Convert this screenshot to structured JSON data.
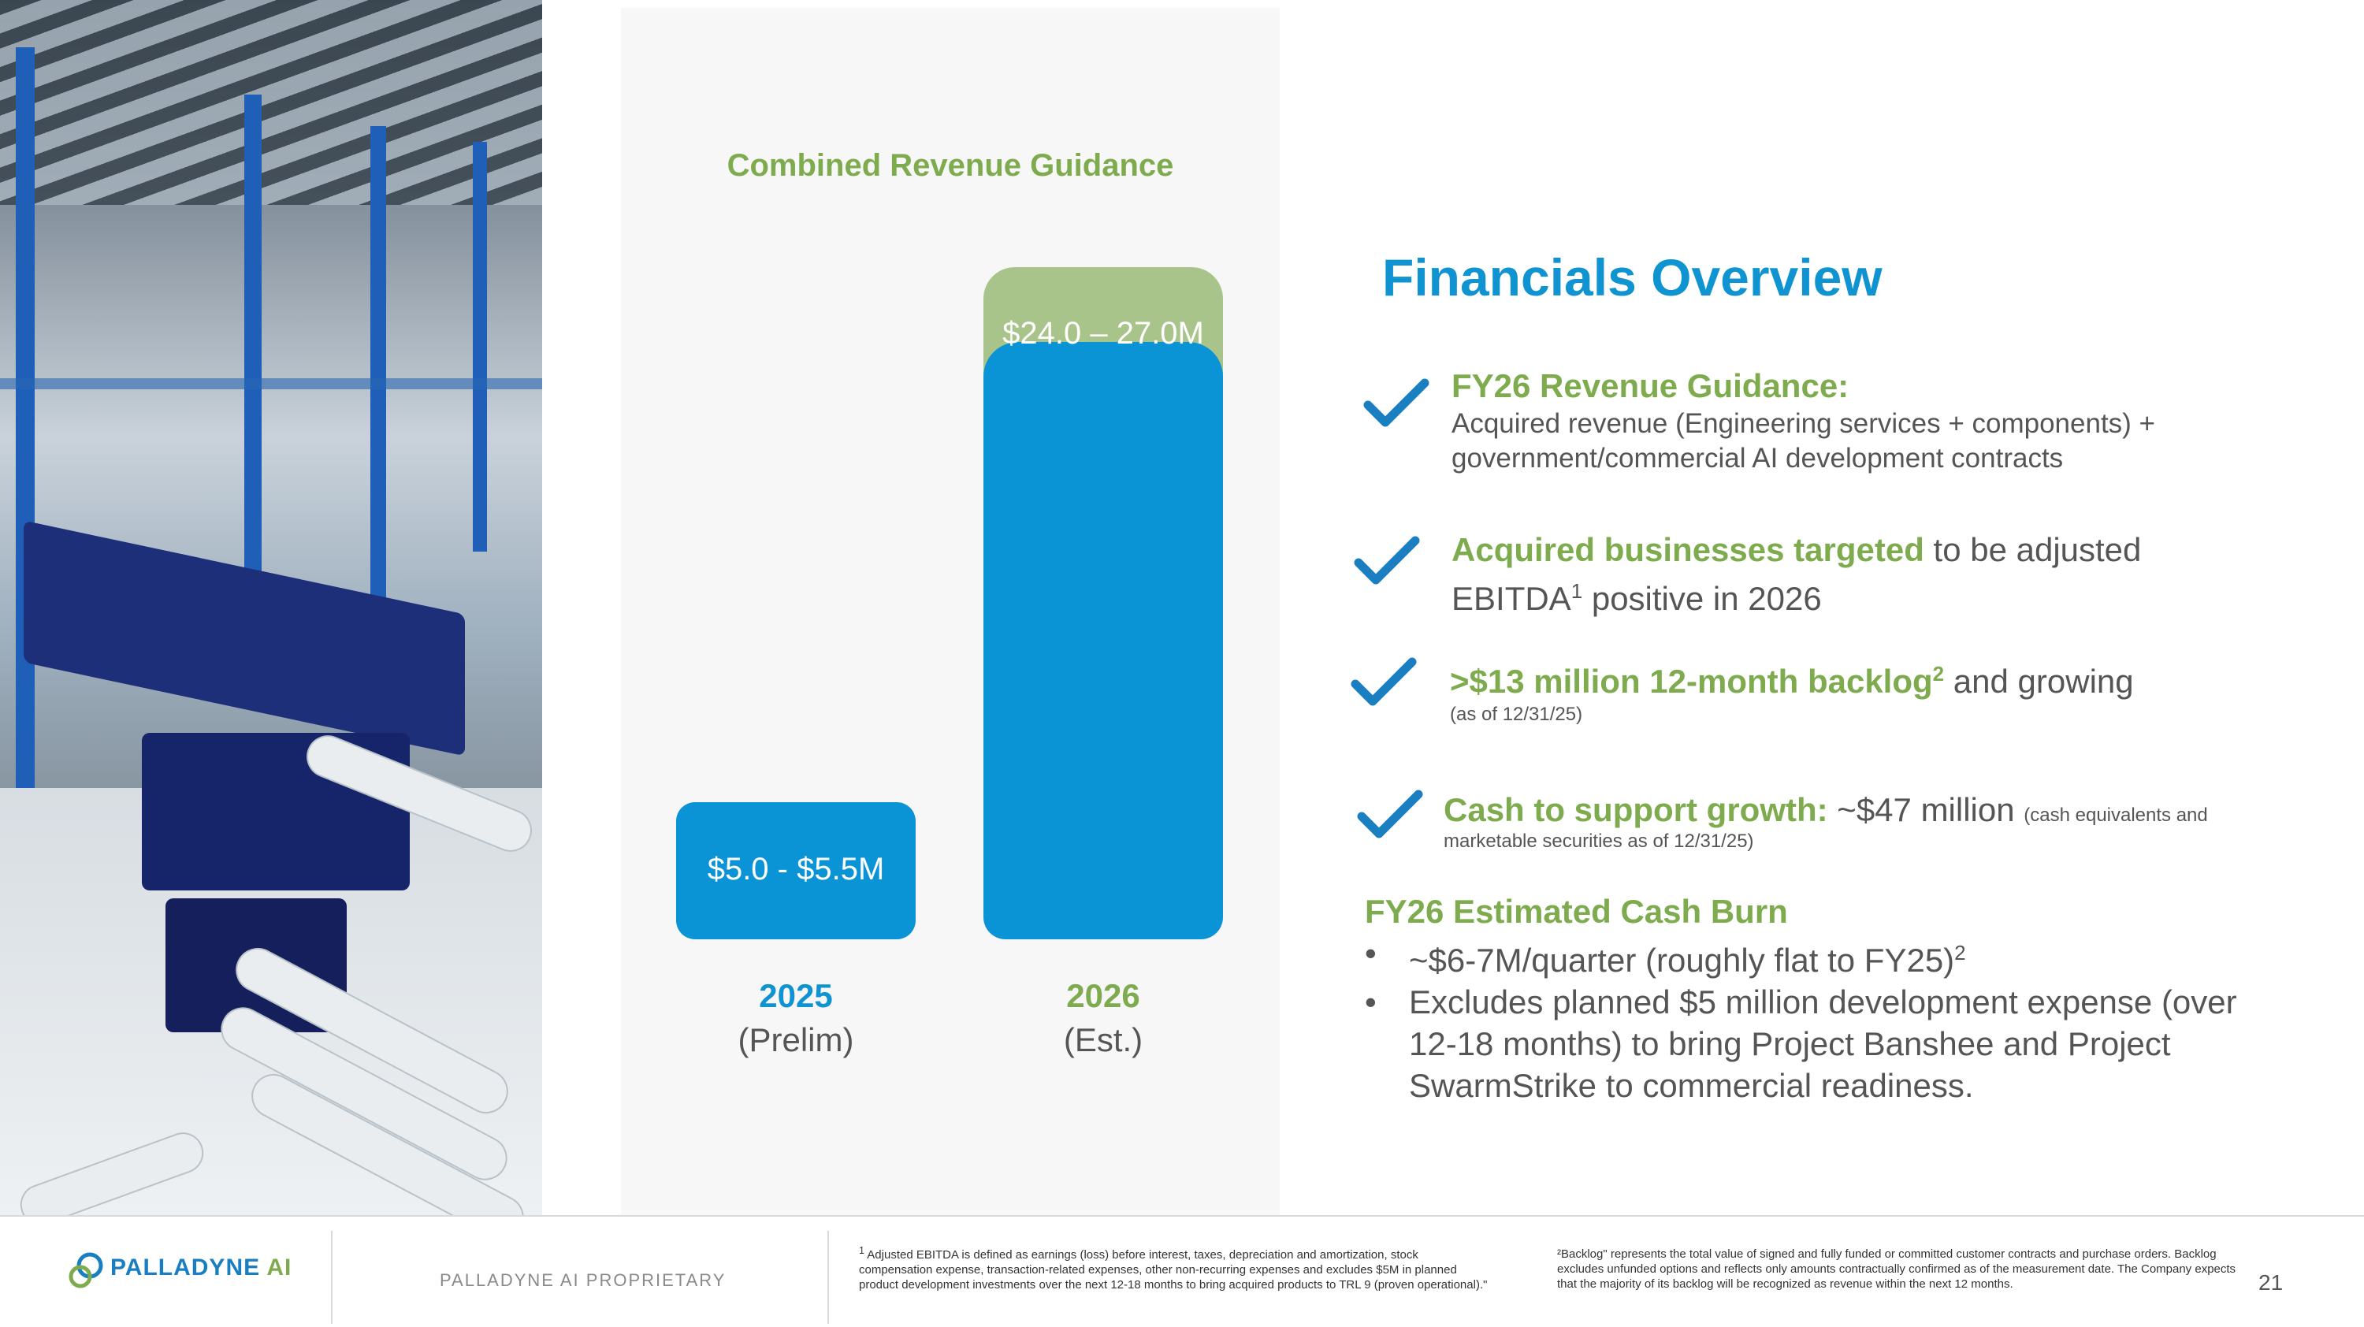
{
  "colors": {
    "accent_blue": "#0f93d1",
    "accent_green": "#7eab4e",
    "bar_green": "#a8c48a",
    "bar_blue": "#0a94d6"
  },
  "chart_data": {
    "type": "bar",
    "title": "Combined Revenue Guidance",
    "categories": [
      "2025",
      "2026"
    ],
    "category_notes": [
      "(Prelim)",
      "(Est.)"
    ],
    "series": [
      {
        "name": "low",
        "values": [
          5.0,
          24.0
        ]
      },
      {
        "name": "range",
        "values": [
          0.5,
          3.0
        ]
      }
    ],
    "value_labels": [
      "$5.0 - $5.5M",
      "$24.0 – 27.0M"
    ],
    "ylim": [
      0,
      27
    ],
    "unit": "$M"
  },
  "overview": {
    "title": "Financials Overview",
    "items": [
      {
        "heading": "FY26 Revenue Guidance:",
        "line1": "Acquired revenue (Engineering services + components) +",
        "line2": "government/commercial AI development contracts"
      },
      {
        "heading": "Acquired businesses targeted",
        "rest": " to be adjusted",
        "line2a": "EBITDA",
        "sup": "1",
        "line2b": " positive in 2026"
      },
      {
        "heading": ">$13 million 12-month backlog",
        "sup": "2",
        "rest": " and growing",
        "note": "(as of 12/31/25)"
      },
      {
        "heading": "Cash to support growth:",
        "rest": " ~$47 million ",
        "note1": "(cash equivalents and",
        "note2": "marketable securities as of 12/31/25)"
      }
    ],
    "burn": {
      "heading": "FY26 Estimated Cash Burn",
      "b1": "~$6-7M/quarter (roughly flat to FY25)",
      "b1sup": "2",
      "b2l1": "Excludes planned $5 million development expense (over",
      "b2l2": "12-18 months) to bring Project Banshee and Project",
      "b2l3": "SwarmStrike to commercial readiness."
    }
  },
  "footer": {
    "logo_main": "PALLADYNE",
    "logo_ai": "AI",
    "proprietary": "PALLADYNE AI PROPRIETARY",
    "fn1_sup": "1",
    "fn1": "Adjusted EBITDA is defined as earnings (loss) before interest, taxes, depreciation and amortization, stock compensation expense, transaction-related expenses, other non-recurring expenses and excludes $5M in planned product development investments over the next 12-18 months to bring acquired products to TRL 9 (proven operational).\"",
    "fn2": "²Backlog\" represents the total value of signed and fully funded or committed customer contracts and purchase orders. Backlog excludes unfunded options and reflects only amounts contractually confirmed as of the measurement date. The Company expects that the majority of its backlog will be recognized as revenue within the next 12 months.",
    "page": "21"
  }
}
